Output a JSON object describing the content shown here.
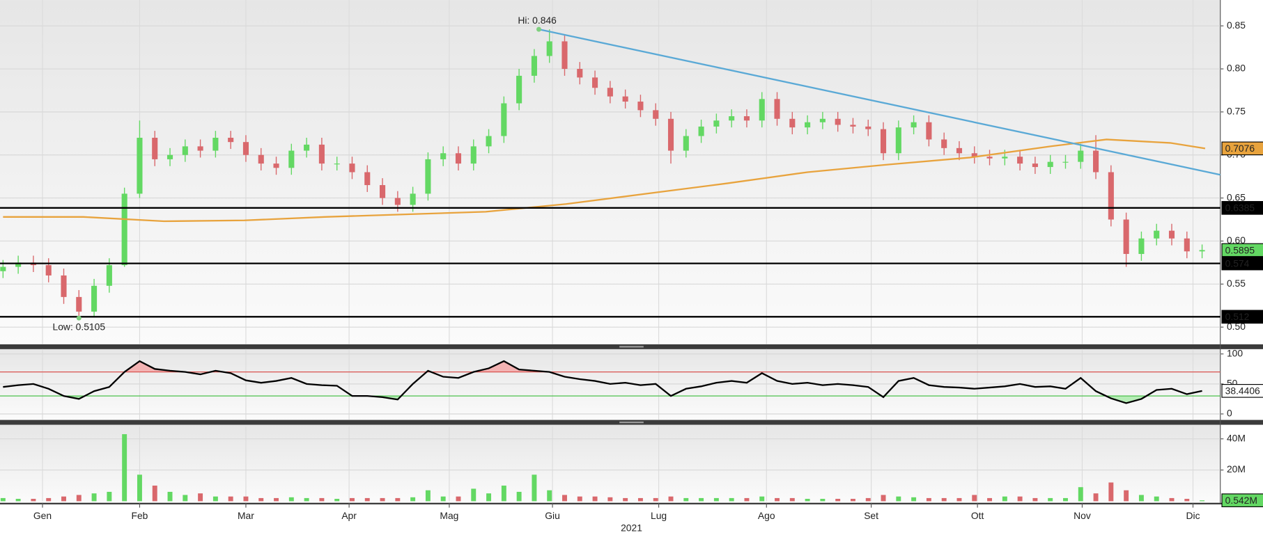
{
  "chart_data": [
    {
      "type": "candlestick",
      "x": [
        0,
        1,
        2,
        3,
        4,
        5,
        6,
        7,
        8,
        9,
        10,
        11,
        12,
        13,
        14,
        15,
        16,
        17,
        18,
        19,
        20,
        21,
        22,
        23,
        24,
        25,
        26,
        27,
        28,
        29,
        30,
        31,
        32,
        33,
        34,
        35,
        36,
        37,
        38,
        39,
        40,
        41,
        42,
        43,
        44,
        45,
        46,
        47,
        48,
        49,
        50,
        51,
        52,
        53,
        54,
        55,
        56,
        57,
        58,
        59,
        60,
        61,
        62,
        63,
        64,
        65,
        66,
        67,
        68,
        69,
        70,
        71,
        72,
        73,
        74,
        75,
        76,
        77,
        78,
        79
      ],
      "open": [
        0.565,
        0.57,
        0.575,
        0.572,
        0.56,
        0.535,
        0.518,
        0.548,
        0.572,
        0.655,
        0.72,
        0.695,
        0.7,
        0.71,
        0.705,
        0.72,
        0.715,
        0.7,
        0.69,
        0.685,
        0.705,
        0.712,
        0.69,
        0.69,
        0.68,
        0.665,
        0.65,
        0.642,
        0.655,
        0.695,
        0.702,
        0.69,
        0.71,
        0.722,
        0.76,
        0.792,
        0.815,
        0.832,
        0.8,
        0.79,
        0.778,
        0.768,
        0.762,
        0.752,
        0.742,
        0.705,
        0.722,
        0.733,
        0.74,
        0.745,
        0.74,
        0.765,
        0.742,
        0.732,
        0.738,
        0.742,
        0.735,
        0.733,
        0.73,
        0.702,
        0.732,
        0.738,
        0.718,
        0.708,
        0.702,
        0.698,
        0.696,
        0.698,
        0.69,
        0.686,
        0.692,
        0.692,
        0.705,
        0.68,
        0.625,
        0.585,
        0.603,
        0.612,
        0.603,
        0.588
      ],
      "high": [
        0.578,
        0.583,
        0.583,
        0.58,
        0.568,
        0.543,
        0.556,
        0.58,
        0.662,
        0.74,
        0.728,
        0.708,
        0.718,
        0.718,
        0.728,
        0.728,
        0.723,
        0.708,
        0.698,
        0.713,
        0.72,
        0.72,
        0.698,
        0.698,
        0.688,
        0.673,
        0.658,
        0.663,
        0.703,
        0.71,
        0.71,
        0.718,
        0.73,
        0.768,
        0.8,
        0.823,
        0.846,
        0.84,
        0.808,
        0.798,
        0.786,
        0.776,
        0.77,
        0.76,
        0.75,
        0.73,
        0.741,
        0.748,
        0.753,
        0.753,
        0.773,
        0.773,
        0.75,
        0.746,
        0.75,
        0.75,
        0.743,
        0.741,
        0.738,
        0.74,
        0.746,
        0.746,
        0.726,
        0.716,
        0.71,
        0.706,
        0.706,
        0.706,
        0.698,
        0.7,
        0.7,
        0.713,
        0.723,
        0.688,
        0.633,
        0.611,
        0.62,
        0.62,
        0.611,
        0.596
      ],
      "low": [
        0.557,
        0.562,
        0.564,
        0.552,
        0.527,
        0.5105,
        0.512,
        0.54,
        0.57,
        0.65,
        0.687,
        0.687,
        0.692,
        0.697,
        0.697,
        0.707,
        0.692,
        0.682,
        0.677,
        0.677,
        0.697,
        0.682,
        0.682,
        0.672,
        0.657,
        0.642,
        0.634,
        0.634,
        0.647,
        0.687,
        0.682,
        0.682,
        0.702,
        0.714,
        0.752,
        0.784,
        0.807,
        0.792,
        0.782,
        0.77,
        0.76,
        0.754,
        0.744,
        0.734,
        0.69,
        0.697,
        0.714,
        0.725,
        0.732,
        0.732,
        0.732,
        0.734,
        0.724,
        0.724,
        0.73,
        0.727,
        0.725,
        0.722,
        0.694,
        0.694,
        0.724,
        0.71,
        0.7,
        0.694,
        0.69,
        0.688,
        0.688,
        0.682,
        0.678,
        0.678,
        0.684,
        0.684,
        0.672,
        0.617,
        0.57,
        0.577,
        0.595,
        0.595,
        0.58,
        0.58
      ],
      "close": [
        0.57,
        0.575,
        0.572,
        0.56,
        0.535,
        0.518,
        0.548,
        0.572,
        0.655,
        0.72,
        0.695,
        0.7,
        0.71,
        0.705,
        0.72,
        0.715,
        0.7,
        0.69,
        0.685,
        0.705,
        0.712,
        0.69,
        0.69,
        0.68,
        0.665,
        0.65,
        0.642,
        0.655,
        0.695,
        0.702,
        0.69,
        0.71,
        0.722,
        0.76,
        0.792,
        0.815,
        0.832,
        0.8,
        0.79,
        0.778,
        0.768,
        0.762,
        0.752,
        0.742,
        0.705,
        0.722,
        0.733,
        0.74,
        0.745,
        0.74,
        0.765,
        0.742,
        0.732,
        0.738,
        0.742,
        0.735,
        0.733,
        0.73,
        0.702,
        0.732,
        0.738,
        0.718,
        0.708,
        0.702,
        0.698,
        0.696,
        0.698,
        0.69,
        0.686,
        0.692,
        0.692,
        0.705,
        0.68,
        0.625,
        0.585,
        0.603,
        0.612,
        0.603,
        0.588,
        0.5895
      ],
      "up_color": "#63d863",
      "down_color": "#d9686c",
      "xlim": [
        -0.2,
        80.2
      ],
      "xticks": [
        {
          "value": 2.6,
          "label": "Gen"
        },
        {
          "value": 9.0,
          "label": "Feb"
        },
        {
          "value": 16.0,
          "label": "Mar"
        },
        {
          "value": 22.8,
          "label": "Apr"
        },
        {
          "value": 29.4,
          "label": "Mag"
        },
        {
          "value": 36.2,
          "label": "Giu"
        },
        {
          "value": 43.2,
          "label": "Lug"
        },
        {
          "value": 50.3,
          "label": "Ago"
        },
        {
          "value": 57.2,
          "label": "Set"
        },
        {
          "value": 64.2,
          "label": "Ott"
        },
        {
          "value": 71.1,
          "label": "Nov"
        },
        {
          "value": 78.4,
          "label": "Dic"
        }
      ],
      "xlabel": "2021",
      "ylim": [
        0.48,
        0.88
      ],
      "yticks": [
        {
          "value": 0.5,
          "label": "0.50"
        },
        0.55,
        {
          "value": 0.6,
          "label": "0.60"
        },
        0.65,
        {
          "value": 0.7,
          "label": "0.70"
        },
        0.75,
        {
          "value": 0.8,
          "label": "0.80"
        },
        0.85
      ],
      "grid": true,
      "moving_average": {
        "color": "#e8a33d",
        "x": [
          0,
          5.3,
          10.6,
          15.9,
          21.2,
          26.5,
          31.8,
          37.1,
          42.4,
          47.7,
          53.0,
          58.4,
          63.7,
          69.0,
          72.7,
          76.9,
          79.2
        ],
        "values": [
          0.628,
          0.628,
          0.623,
          0.624,
          0.628,
          0.631,
          0.634,
          0.643,
          0.655,
          0.667,
          0.68,
          0.689,
          0.697,
          0.71,
          0.718,
          0.714,
          0.7076
        ],
        "last_label": 0.7076
      },
      "trendline": {
        "color": "#5aa9d6",
        "x": [
          35.3,
          80.2
        ],
        "values": [
          0.846,
          0.677
        ]
      },
      "levels": [
        0.6385,
        0.574,
        0.512
      ],
      "last_close_label": 0.5895,
      "annotations": [
        {
          "label": "Hi: 0.846",
          "x": 35.3,
          "value": 0.846
        },
        {
          "label": "Low: 0.5105",
          "x": 5,
          "value": 0.5105
        }
      ]
    },
    {
      "type": "line",
      "color": "#000000",
      "values": [
        45,
        48,
        50,
        42,
        30,
        25,
        38,
        45,
        70,
        88,
        75,
        72,
        70,
        66,
        72,
        68,
        56,
        52,
        55,
        60,
        50,
        48,
        47,
        30,
        30,
        28,
        24,
        50,
        72,
        62,
        60,
        70,
        76,
        88,
        74,
        72,
        70,
        62,
        58,
        55,
        50,
        52,
        48,
        50,
        30,
        42,
        46,
        52,
        55,
        52,
        68,
        55,
        50,
        52,
        48,
        50,
        48,
        45,
        28,
        55,
        60,
        48,
        45,
        44,
        42,
        44,
        46,
        50,
        45,
        46,
        42,
        60,
        38,
        26,
        18,
        25,
        40,
        42,
        33,
        38.4406
      ],
      "ylim": [
        -10,
        108
      ],
      "yticks": [
        0,
        50,
        100
      ],
      "overbought": 70,
      "oversold": 30,
      "last_label": 38.4406
    },
    {
      "type": "bar",
      "values": [
        2,
        1.5,
        1.5,
        2,
        3,
        4,
        5,
        6,
        43,
        17,
        10,
        6,
        4,
        5,
        3,
        3,
        3,
        2,
        2,
        2.5,
        2,
        2,
        1.5,
        2,
        2,
        2,
        2,
        2.5,
        7,
        3,
        3,
        8,
        5,
        10,
        6,
        17,
        7,
        4,
        3,
        3,
        2.5,
        2,
        2,
        2,
        3,
        2,
        2,
        2,
        2,
        2,
        3,
        2,
        2,
        1.5,
        1.5,
        1.5,
        1.5,
        2,
        4,
        3,
        2.5,
        2,
        2,
        2,
        4,
        2,
        3,
        3,
        2,
        2,
        2,
        9,
        5,
        12,
        7,
        4,
        3,
        2,
        1.5,
        0.542
      ],
      "ylim": [
        0,
        48
      ],
      "yticks": [
        {
          "value": 20,
          "label": "20M"
        },
        {
          "value": 40,
          "label": "40M"
        }
      ],
      "last_label": {
        "value": 0.542,
        "label": "0.542M"
      }
    }
  ]
}
